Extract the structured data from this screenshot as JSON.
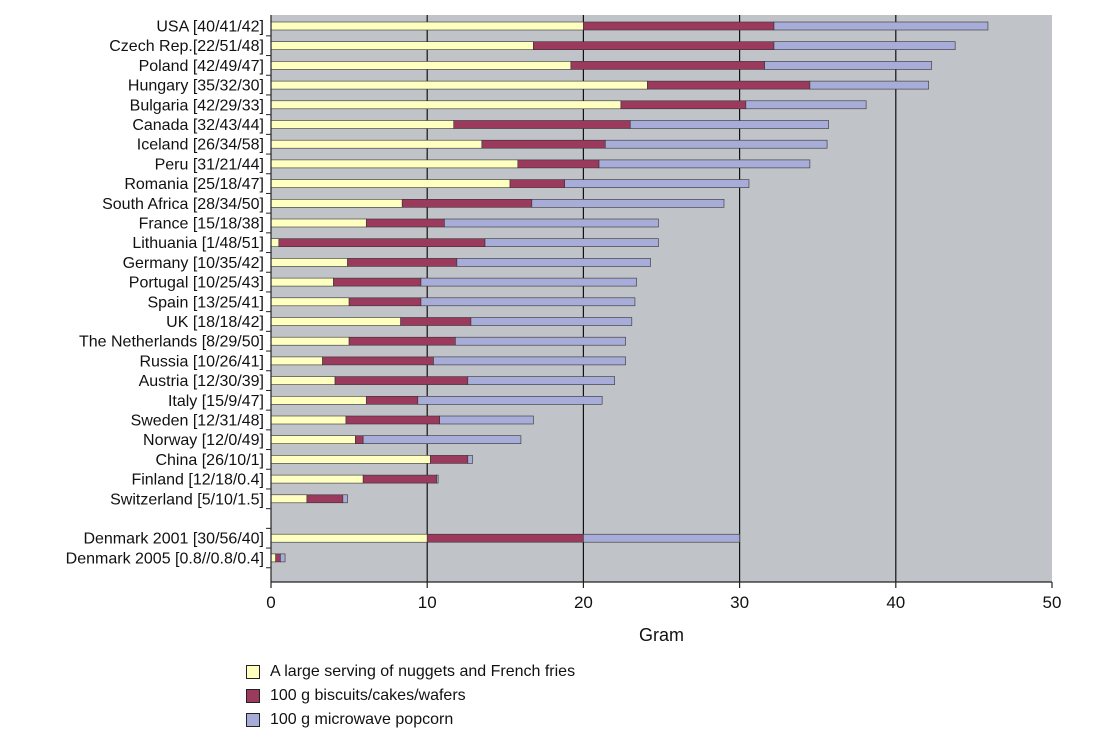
{
  "chart_data": {
    "type": "bar",
    "orientation": "horizontal",
    "stacked": true,
    "xlabel": "Gram",
    "xlim": [
      0,
      50
    ],
    "xticks": [
      0,
      10,
      20,
      30,
      40,
      50
    ],
    "grid": true,
    "legend_position": "bottom",
    "categories": [
      "USA [40/41/42]",
      "Czech Rep.[22/51/48]",
      "Poland [42/49/47]",
      "Hungary [35/32/30]",
      "Bulgaria [42/29/33]",
      "Canada [32/43/44]",
      "Iceland [26/34/58]",
      "Peru [31/21/44]",
      "Romania [25/18/47]",
      "South Africa [28/34/50]",
      "France [15/18/38]",
      "Lithuania [1/48/51]",
      "Germany [10/35/42]",
      "Portugal [10/25/43]",
      "Spain [13/25/41]",
      "UK [18/18/42]",
      "The Netherlands [8/29/50]",
      "Russia [10/26/41]",
      "Austria [12/30/39]",
      "Italy [15/9/47]",
      "Sweden [12/31/48]",
      "Norway [12/0/49]",
      "China [26/10/1]",
      "Finland [12/18/0.4]",
      "Switzerland [5/10/1.5]",
      "",
      "Denmark 2001 [30/56/40]",
      "Denmark 2005 [0.8//0.8/0.4]"
    ],
    "series": [
      {
        "name": "A large serving of nuggets and French fries",
        "color": "#ffffc0",
        "values": [
          20.0,
          16.8,
          19.2,
          24.1,
          22.4,
          11.7,
          13.5,
          15.8,
          15.3,
          8.4,
          6.1,
          0.5,
          4.9,
          4.0,
          5.0,
          8.3,
          5.0,
          3.3,
          4.1,
          6.1,
          4.8,
          5.4,
          10.2,
          5.9,
          2.3,
          null,
          10.0,
          0.3
        ]
      },
      {
        "name": "100 g biscuits/cakes/wafers",
        "color": "#9c3a5e",
        "values": [
          12.2,
          15.4,
          12.4,
          10.4,
          8.0,
          11.3,
          7.9,
          5.2,
          3.5,
          8.3,
          5.0,
          13.2,
          7.0,
          5.6,
          4.6,
          4.5,
          6.8,
          7.1,
          8.5,
          3.3,
          6.0,
          0.5,
          2.4,
          4.7,
          2.3,
          null,
          10.0,
          0.3
        ]
      },
      {
        "name": "100 g microwave popcorn",
        "color": "#a8acd8",
        "values": [
          13.7,
          11.6,
          10.7,
          7.6,
          7.7,
          12.7,
          14.2,
          13.5,
          11.8,
          12.3,
          13.7,
          11.1,
          12.4,
          13.8,
          13.7,
          10.3,
          10.9,
          12.3,
          9.4,
          11.8,
          6.0,
          10.1,
          0.3,
          0.1,
          0.3,
          null,
          10.0,
          0.3
        ]
      }
    ]
  }
}
